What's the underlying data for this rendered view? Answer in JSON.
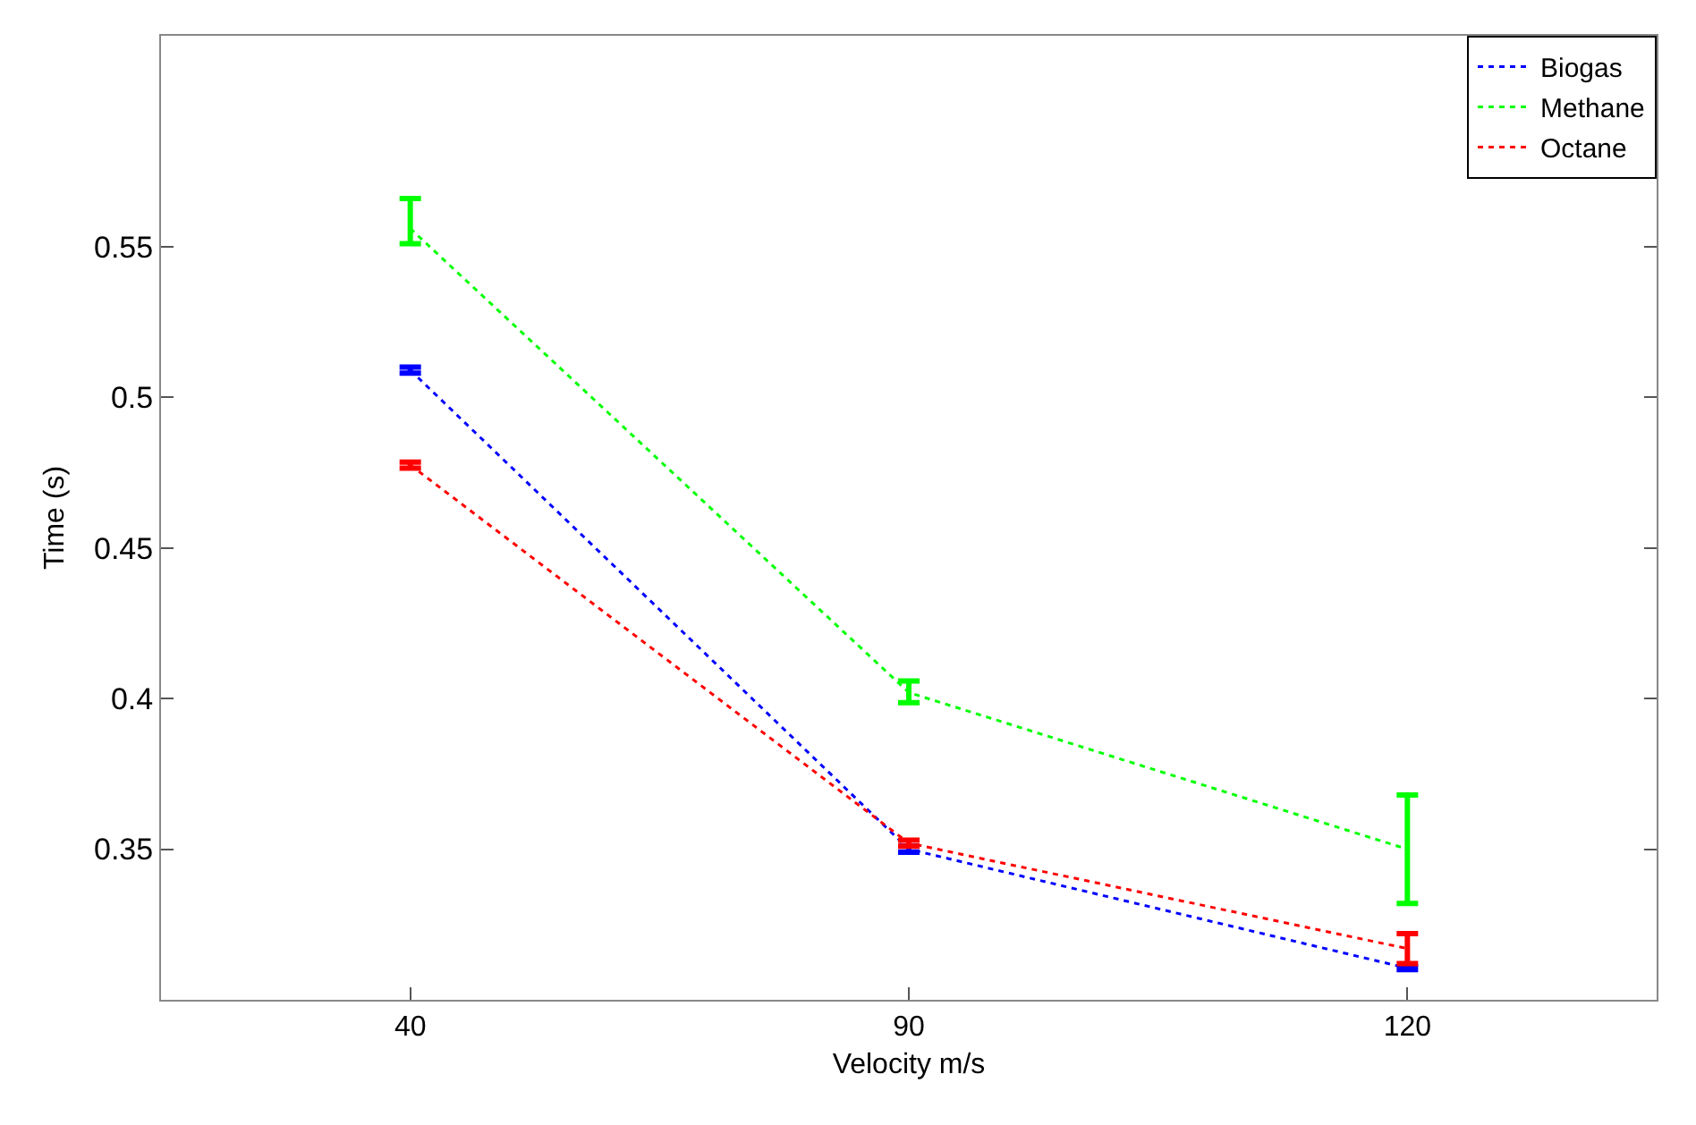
{
  "chart_data": {
    "type": "line",
    "xlabel": "Velocity m/s",
    "ylabel": "Time (s)",
    "categories": [
      "40",
      "90",
      "120"
    ],
    "series": [
      {
        "name": "Biogas",
        "color": "#0000ff",
        "values": [
          0.509,
          0.35,
          0.3105
        ],
        "errors": [
          0.001,
          0.001,
          0.0005
        ]
      },
      {
        "name": "Methane",
        "color": "#00ff00",
        "values": [
          0.556,
          0.402,
          0.35
        ],
        "errors": [
          [
            0.551,
            0.566
          ],
          [
            0.3986,
            0.4058
          ],
          [
            0.332,
            0.368
          ]
        ]
      },
      {
        "name": "Octane",
        "color": "#ff0000",
        "values": [
          0.4775,
          0.352,
          0.317
        ],
        "errors": [
          0.001,
          0.001,
          0.005
        ]
      }
    ],
    "ylim": [
      0.3,
      0.62
    ],
    "yticks": [
      0.35,
      0.4,
      0.45,
      0.5,
      0.55
    ],
    "grid": false,
    "legend": "top right",
    "marker": "none",
    "line_style": "dotted"
  }
}
